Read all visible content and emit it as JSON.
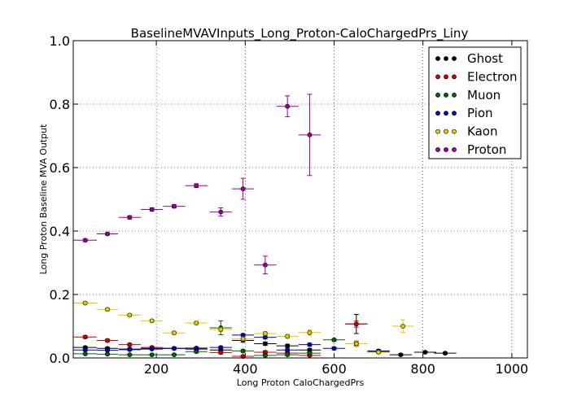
{
  "chart_data": {
    "type": "scatter",
    "title": "BaselineMVAVInputs_Long_Proton-CaloChargedPrs_Liny",
    "xlabel": "Long Proton CaloChargedPrs",
    "ylabel": "Long Proton Baseline MVA Output",
    "xlim": [
      13,
      1035
    ],
    "ylim": [
      0,
      1.0
    ],
    "xticks": [
      200,
      400,
      600,
      800,
      1000
    ],
    "xtick_labels": [
      "200",
      "400",
      "600",
      "800",
      "1000"
    ],
    "yticks": [
      0.0,
      0.2,
      0.4,
      0.6,
      0.8,
      1.0
    ],
    "ytick_labels": [
      "0.0",
      "0.2",
      "0.4",
      "0.6",
      "0.8",
      "1.0"
    ],
    "grid": true,
    "legend_position": "top-right",
    "series": [
      {
        "name": "Ghost",
        "color": "#000000",
        "points": [
          {
            "x": 40,
            "xerr": 26,
            "y": 0.033,
            "yerr": 0.003
          },
          {
            "x": 90,
            "xerr": 24,
            "y": 0.03,
            "yerr": 0.003
          },
          {
            "x": 140,
            "xerr": 25,
            "y": 0.028,
            "yerr": 0.003
          },
          {
            "x": 190,
            "xerr": 25,
            "y": 0.03,
            "yerr": 0.003
          },
          {
            "x": 240,
            "xerr": 25,
            "y": 0.03,
            "yerr": 0.003
          },
          {
            "x": 290,
            "xerr": 25,
            "y": 0.028,
            "yerr": 0.003
          },
          {
            "x": 345,
            "xerr": 25,
            "y": 0.025,
            "yerr": 0.004
          },
          {
            "x": 395,
            "xerr": 25,
            "y": 0.055,
            "yerr": 0.005
          },
          {
            "x": 445,
            "xerr": 25,
            "y": 0.045,
            "yerr": 0.005
          },
          {
            "x": 495,
            "xerr": 25,
            "y": 0.038,
            "yerr": 0.005
          },
          {
            "x": 545,
            "xerr": 25,
            "y": 0.025,
            "yerr": 0.005
          },
          {
            "x": 650,
            "xerr": 25,
            "y": 0.107,
            "yerr": 0.03
          },
          {
            "x": 700,
            "xerr": 25,
            "y": 0.02,
            "yerr": 0.004
          },
          {
            "x": 750,
            "xerr": 25,
            "y": 0.01,
            "yerr": 0.003
          },
          {
            "x": 805,
            "xerr": 25,
            "y": 0.018,
            "yerr": 0.003
          },
          {
            "x": 850,
            "xerr": 25,
            "y": 0.015,
            "yerr": 0.003
          }
        ]
      },
      {
        "name": "Electron",
        "color": "#cc0000",
        "points": [
          {
            "x": 40,
            "xerr": 26,
            "y": 0.066,
            "yerr": 0.004
          },
          {
            "x": 90,
            "xerr": 24,
            "y": 0.055,
            "yerr": 0.004
          },
          {
            "x": 140,
            "xerr": 25,
            "y": 0.042,
            "yerr": 0.004
          },
          {
            "x": 190,
            "xerr": 25,
            "y": 0.033,
            "yerr": 0.004
          },
          {
            "x": 240,
            "xerr": 25,
            "y": 0.03,
            "yerr": 0.004
          },
          {
            "x": 290,
            "xerr": 25,
            "y": 0.03,
            "yerr": 0.004
          },
          {
            "x": 345,
            "xerr": 25,
            "y": 0.017,
            "yerr": 0.004
          },
          {
            "x": 395,
            "xerr": 25,
            "y": 0.005,
            "yerr": 0.003
          },
          {
            "x": 445,
            "xerr": 25,
            "y": 0.018,
            "yerr": 0.004
          },
          {
            "x": 495,
            "xerr": 25,
            "y": 0.015,
            "yerr": 0.004
          },
          {
            "x": 545,
            "xerr": 25,
            "y": 0.008,
            "yerr": 0.003
          },
          {
            "x": 650,
            "xerr": 25,
            "y": 0.107,
            "yerr": 0.01
          }
        ]
      },
      {
        "name": "Muon",
        "color": "#006600",
        "points": [
          {
            "x": 40,
            "xerr": 26,
            "y": 0.013,
            "yerr": 0.002
          },
          {
            "x": 90,
            "xerr": 24,
            "y": 0.012,
            "yerr": 0.002
          },
          {
            "x": 140,
            "xerr": 25,
            "y": 0.01,
            "yerr": 0.002
          },
          {
            "x": 190,
            "xerr": 25,
            "y": 0.01,
            "yerr": 0.002
          },
          {
            "x": 240,
            "xerr": 25,
            "y": 0.01,
            "yerr": 0.002
          },
          {
            "x": 290,
            "xerr": 25,
            "y": 0.02,
            "yerr": 0.003
          },
          {
            "x": 345,
            "xerr": 25,
            "y": 0.095,
            "yerr": 0.022
          },
          {
            "x": 395,
            "xerr": 25,
            "y": 0.022,
            "yerr": 0.004
          },
          {
            "x": 445,
            "xerr": 25,
            "y": 0.008,
            "yerr": 0.003
          },
          {
            "x": 495,
            "xerr": 25,
            "y": 0.01,
            "yerr": 0.003
          },
          {
            "x": 545,
            "xerr": 25,
            "y": 0.015,
            "yerr": 0.003
          },
          {
            "x": 600,
            "xerr": 25,
            "y": 0.057,
            "yerr": 0.004
          }
        ]
      },
      {
        "name": "Pion",
        "color": "#0000cc",
        "points": [
          {
            "x": 40,
            "xerr": 26,
            "y": 0.025,
            "yerr": 0.002
          },
          {
            "x": 90,
            "xerr": 24,
            "y": 0.024,
            "yerr": 0.002
          },
          {
            "x": 140,
            "xerr": 25,
            "y": 0.026,
            "yerr": 0.002
          },
          {
            "x": 190,
            "xerr": 25,
            "y": 0.028,
            "yerr": 0.002
          },
          {
            "x": 240,
            "xerr": 25,
            "y": 0.03,
            "yerr": 0.002
          },
          {
            "x": 290,
            "xerr": 25,
            "y": 0.031,
            "yerr": 0.002
          },
          {
            "x": 345,
            "xerr": 25,
            "y": 0.033,
            "yerr": 0.003
          },
          {
            "x": 395,
            "xerr": 25,
            "y": 0.072,
            "yerr": 0.004
          },
          {
            "x": 445,
            "xerr": 25,
            "y": 0.065,
            "yerr": 0.004
          },
          {
            "x": 495,
            "xerr": 25,
            "y": 0.025,
            "yerr": 0.003
          },
          {
            "x": 545,
            "xerr": 25,
            "y": 0.042,
            "yerr": 0.004
          },
          {
            "x": 600,
            "xerr": 25,
            "y": 0.03,
            "yerr": 0.004
          },
          {
            "x": 650,
            "xerr": 25,
            "y": 0.045,
            "yerr": 0.006
          },
          {
            "x": 700,
            "xerr": 25,
            "y": 0.022,
            "yerr": 0.004
          }
        ]
      },
      {
        "name": "Kaon",
        "color": "#e6c800",
        "points": [
          {
            "x": 40,
            "xerr": 26,
            "y": 0.173,
            "yerr": 0.004
          },
          {
            "x": 90,
            "xerr": 24,
            "y": 0.153,
            "yerr": 0.004
          },
          {
            "x": 140,
            "xerr": 25,
            "y": 0.135,
            "yerr": 0.004
          },
          {
            "x": 190,
            "xerr": 25,
            "y": 0.117,
            "yerr": 0.004
          },
          {
            "x": 240,
            "xerr": 25,
            "y": 0.079,
            "yerr": 0.004
          },
          {
            "x": 290,
            "xerr": 25,
            "y": 0.11,
            "yerr": 0.005
          },
          {
            "x": 345,
            "xerr": 25,
            "y": 0.09,
            "yerr": 0.006
          },
          {
            "x": 395,
            "xerr": 25,
            "y": 0.06,
            "yerr": 0.006
          },
          {
            "x": 445,
            "xerr": 25,
            "y": 0.077,
            "yerr": 0.006
          },
          {
            "x": 495,
            "xerr": 25,
            "y": 0.068,
            "yerr": 0.006
          },
          {
            "x": 545,
            "xerr": 25,
            "y": 0.08,
            "yerr": 0.008
          },
          {
            "x": 650,
            "xerr": 25,
            "y": 0.045,
            "yerr": 0.01
          },
          {
            "x": 700,
            "xerr": 25,
            "y": 0.018,
            "yerr": 0.004
          },
          {
            "x": 755,
            "xerr": 25,
            "y": 0.1,
            "yerr": 0.02
          }
        ]
      },
      {
        "name": "Proton",
        "color": "#990099",
        "points": [
          {
            "x": 40,
            "xerr": 26,
            "y": 0.371,
            "yerr": 0.004
          },
          {
            "x": 90,
            "xerr": 24,
            "y": 0.391,
            "yerr": 0.004
          },
          {
            "x": 140,
            "xerr": 25,
            "y": 0.443,
            "yerr": 0.005
          },
          {
            "x": 190,
            "xerr": 25,
            "y": 0.468,
            "yerr": 0.005
          },
          {
            "x": 240,
            "xerr": 25,
            "y": 0.478,
            "yerr": 0.005
          },
          {
            "x": 290,
            "xerr": 25,
            "y": 0.543,
            "yerr": 0.006
          },
          {
            "x": 345,
            "xerr": 25,
            "y": 0.46,
            "yerr": 0.013
          },
          {
            "x": 395,
            "xerr": 25,
            "y": 0.533,
            "yerr": 0.033
          },
          {
            "x": 445,
            "xerr": 25,
            "y": 0.293,
            "yerr": 0.028
          },
          {
            "x": 495,
            "xerr": 25,
            "y": 0.793,
            "yerr": 0.033
          },
          {
            "x": 545,
            "xerr": 25,
            "y": 0.703,
            "yerr": 0.128
          }
        ]
      }
    ]
  }
}
